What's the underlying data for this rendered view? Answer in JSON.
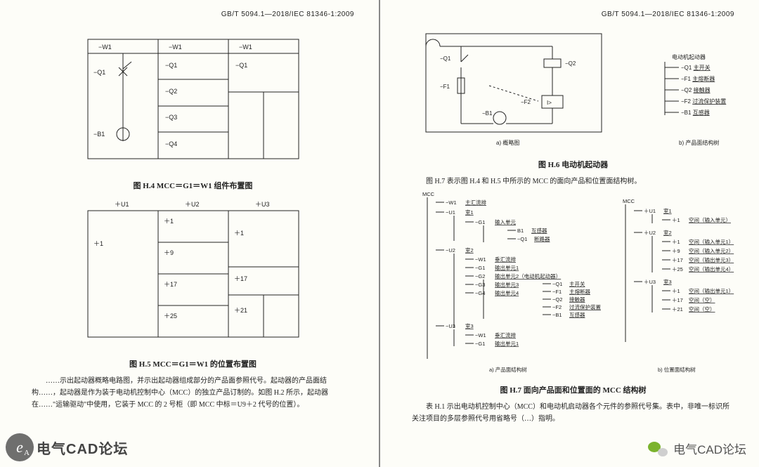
{
  "standard_ref": "GB/T 5094.1—2018/IEC 81346-1:2009",
  "left_page": {
    "fig_h4": {
      "caption": "图 H.4  MCC＝G1＝W1 组件布置图",
      "col_headers": [
        "−W1",
        "−W1",
        "−W1"
      ],
      "col0_top": "−Q1",
      "col0_bottom": "−B1",
      "col1_rows": [
        "−Q1",
        "−Q2",
        "−Q3",
        "−Q4"
      ],
      "col2_top": "−Q1"
    },
    "fig_h5": {
      "caption": "图 H.5  MCC＝G1＝W1 的位置布置图",
      "col_headers": [
        "＋U1",
        "＋U2",
        "＋U3"
      ],
      "col0_items": [
        "＋1"
      ],
      "col1_items": [
        "＋1",
        "＋9",
        "＋17",
        "＋25"
      ],
      "col2_items": [
        "＋1",
        "＋17",
        "＋21"
      ]
    },
    "para": "……示出起动器概略电路图，并示出起动器组成部分的产品面参照代号。起动器的产品面结构……，起动器是作为装于电动机控制中心（MCC）的独立产品订制的。如图 H.2 所示，起动器在……\"运输驱动\"中使用，它装于 MCC 的 2 号柜（即 MCC 中标＝U9＋2 代号的位置）。"
  },
  "right_page": {
    "fig_h6": {
      "caption": "图 H.6  电动机起动器",
      "sub_a": "a)  概略图",
      "sub_b": "b)  产品面结构树",
      "labels": {
        "Q1": "−Q1",
        "Q2": "−Q2",
        "F1": "−F1",
        "F2": "−F2",
        "B1": "−B1",
        "Igt": "I>"
      },
      "tree_title": "电动机起动器",
      "tree_items": [
        {
          "ref": "−Q1",
          "name": "主开关"
        },
        {
          "ref": "−F1",
          "name": "主熔断器"
        },
        {
          "ref": "−Q2",
          "name": "接触器"
        },
        {
          "ref": "−F2",
          "name": "过流保护装置"
        },
        {
          "ref": "−B1",
          "name": "互感器"
        }
      ]
    },
    "para_h7_intro": "图 H.7 表示图 H.4 和 H.5 中所示的 MCC 的面向产品和位置面结构树。",
    "fig_h7": {
      "caption": "图 H.7  面向产品面和位置面的 MCC 结构树",
      "sub_a": "a)  产品面结构树",
      "sub_b": "b)  位置面结构树",
      "root": "MCC",
      "tree_a": {
        "W1": "主汇流排",
        "U1": {
          "label": "室1",
          "G1": {
            "label": "输入单元",
            "B1": "互感器",
            "Q1": "断路器"
          }
        },
        "U2": {
          "label": "室2",
          "W1": "垂汇流排",
          "G1": "输出单元1",
          "G2": {
            "label": "输出单元2（电动机起动器）",
            "Q1": "主开关",
            "F1": "主熔断器",
            "Q2": "接触器",
            "F2": "过流保护装置",
            "B1": "互感器"
          },
          "G3": "输出单元3",
          "G4": "输出单元4"
        },
        "U3": {
          "label": "室3",
          "W1": "垂汇流排",
          "G1": "输出单元1"
        }
      },
      "tree_b": {
        "U1": {
          "label": "室1",
          "p1": "空间（输入单元）"
        },
        "U2": {
          "label": "室2",
          "p1": "空间（输入单元1）",
          "p9": "空间（输入单元2）",
          "p17": "空间（输出单元3）",
          "p25": "空间（输出单元4）"
        },
        "U3": {
          "label": "室3",
          "p1": "空间（输出单元1）",
          "p17": "空间（空）",
          "p21": "空间（空）"
        }
      }
    },
    "para_bottom": "表 H.1 示出电动机控制中心（MCC）和电动机启动器各个元件的参照代号集。表中，非唯一标识所关注项目的多层参照代号用省略号（…）指明。"
  },
  "watermarks": {
    "left_text": "电气CAD论坛",
    "right_text": "电气CAD论坛",
    "logo_glyph": "e"
  },
  "style": {
    "stroke": "#222",
    "stroke_w": 1,
    "page_bg": "#fdfdf8",
    "font_small": 8,
    "font_med": 9
  }
}
